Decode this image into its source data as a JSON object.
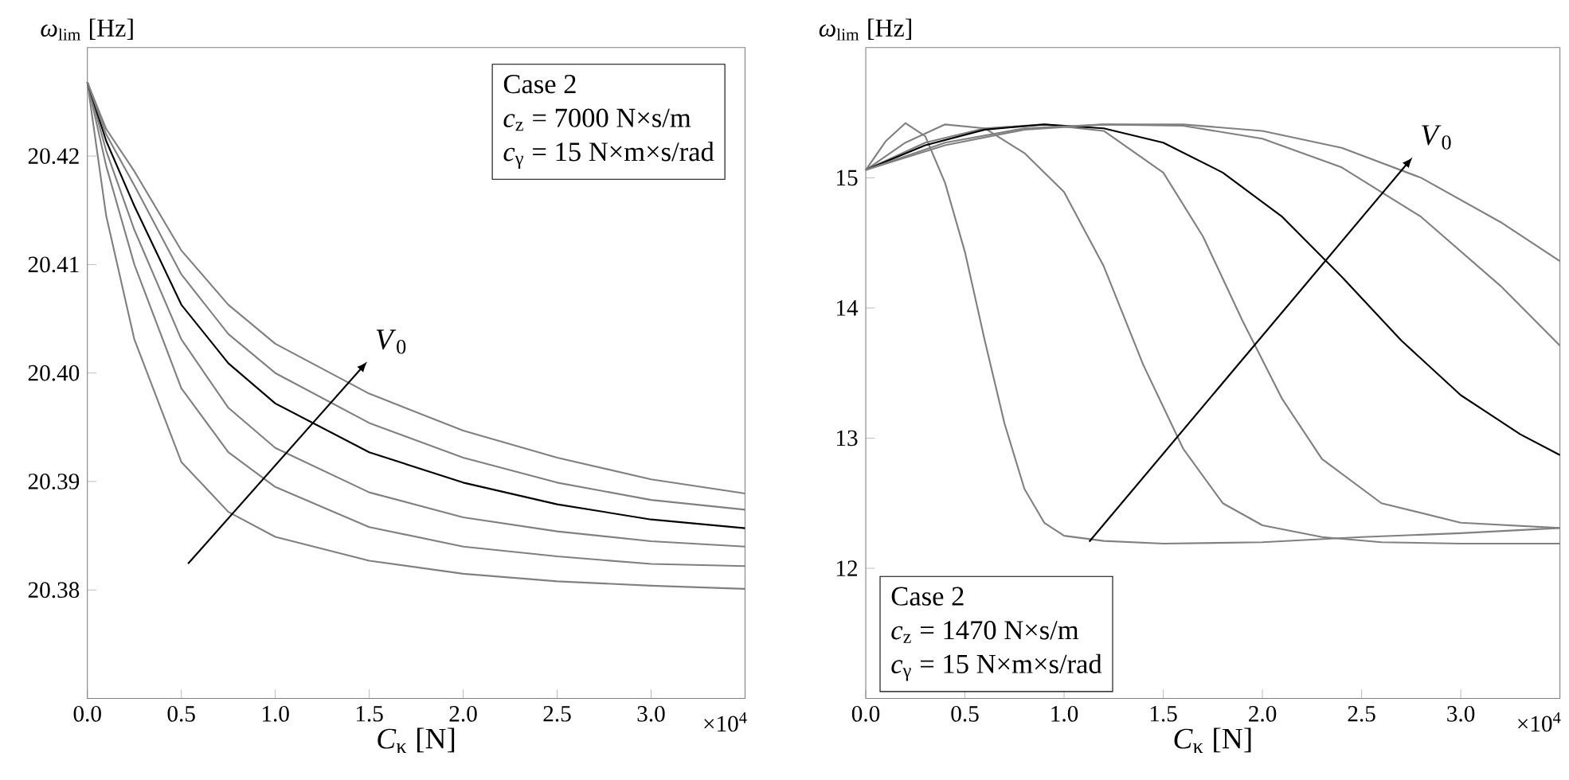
{
  "chart_data": [
    {
      "type": "line",
      "xlabel": "*C*$_{κ}$ [N]",
      "ylabel": "*ω*$_{lim}$ [Hz]",
      "x": [
        0,
        0.1,
        0.25,
        0.5,
        0.75,
        1.0,
        1.5,
        2.0,
        2.5,
        3.0,
        3.5
      ],
      "series": [
        {
          "color": "#808080",
          "values": [
            20.4268,
            20.4145,
            20.4031,
            20.3918,
            20.3872,
            20.3849,
            20.3827,
            20.3815,
            20.3808,
            20.3804,
            20.3801
          ]
        },
        {
          "color": "#808080",
          "values": [
            20.4268,
            20.4191,
            20.41,
            20.3986,
            20.3927,
            20.3895,
            20.3858,
            20.384,
            20.3831,
            20.3824,
            20.3822
          ]
        },
        {
          "color": "#808080",
          "values": [
            20.4268,
            20.4205,
            20.4132,
            20.4031,
            20.3968,
            20.3931,
            20.389,
            20.3867,
            20.3854,
            20.3845,
            20.384
          ]
        },
        {
          "color": "#000000",
          "values": [
            20.4268,
            20.4214,
            20.4154,
            20.4063,
            20.4009,
            20.3972,
            20.3927,
            20.3899,
            20.3879,
            20.3865,
            20.3857
          ]
        },
        {
          "color": "#808080",
          "values": [
            20.4268,
            20.422,
            20.4173,
            20.4091,
            20.4036,
            20.4,
            20.3954,
            20.3922,
            20.3899,
            20.3883,
            20.3874
          ]
        },
        {
          "color": "#808080",
          "values": [
            20.4268,
            20.4225,
            20.4186,
            20.4113,
            20.4063,
            20.4027,
            20.3981,
            20.3947,
            20.3922,
            20.3902,
            20.3889
          ]
        }
      ],
      "xlim": [
        0,
        3.5
      ],
      "ylim": [
        20.37,
        20.43
      ],
      "xticks": [
        {
          "value": 0,
          "label": "0.0"
        },
        {
          "value": 0.5,
          "label": "0.5"
        },
        {
          "value": 1,
          "label": "1.0"
        },
        {
          "value": 1.5,
          "label": "1.5"
        },
        {
          "value": 2,
          "label": "2.0"
        },
        {
          "value": 2.5,
          "label": "2.5"
        },
        {
          "value": 3,
          "label": "3.0"
        }
      ],
      "yticks": [
        20.38,
        20.39,
        {
          "value": 20.4,
          "label": "20.40"
        },
        20.41,
        20.42
      ],
      "annotations": [
        "Case 2",
        "*c*$_{z}$ = 7000 N×s/m",
        "*c*$_{γ}$ = 15 N×m×s/rad",
        "*V*$_{0}$",
        "×10$^{4}$"
      ],
      "marker": "none",
      "line_style": "solid"
    },
    {
      "type": "line",
      "xlabel": "*C*$_{κ}$ [N]",
      "ylabel": "*ω*$_{lim}$ [Hz]",
      "series": [
        {
          "color": "#808080",
          "x": [
            0,
            0.1,
            0.2,
            0.3,
            0.4,
            0.5,
            0.6,
            0.7,
            0.8,
            0.9,
            1.0,
            1.2,
            1.5,
            2.0,
            2.5,
            3.0,
            3.5
          ],
          "values": [
            15.06,
            15.28,
            15.42,
            15.32,
            14.96,
            14.43,
            13.75,
            13.11,
            12.61,
            12.35,
            12.25,
            12.21,
            12.19,
            12.2,
            12.24,
            12.27,
            12.31
          ]
        },
        {
          "color": "#808080",
          "x": [
            0,
            0.2,
            0.4,
            0.6,
            0.8,
            1.0,
            1.2,
            1.4,
            1.6,
            1.8,
            2.0,
            2.3,
            2.6,
            3.0,
            3.5
          ],
          "values": [
            15.06,
            15.27,
            15.41,
            15.38,
            15.19,
            14.89,
            14.32,
            13.56,
            12.92,
            12.5,
            12.33,
            12.24,
            12.2,
            12.19,
            12.19
          ]
        },
        {
          "color": "#808080",
          "x": [
            0,
            0.3,
            0.6,
            0.9,
            1.2,
            1.5,
            1.7,
            1.9,
            2.1,
            2.3,
            2.6,
            3.0,
            3.5
          ],
          "values": [
            15.06,
            15.27,
            15.38,
            15.41,
            15.36,
            15.04,
            14.55,
            13.9,
            13.3,
            12.84,
            12.5,
            12.35,
            12.31
          ]
        },
        {
          "color": "#000000",
          "x": [
            0,
            0.3,
            0.6,
            0.9,
            1.2,
            1.5,
            1.8,
            2.1,
            2.4,
            2.7,
            3.0,
            3.3,
            3.5
          ],
          "values": [
            15.06,
            15.25,
            15.37,
            15.41,
            15.38,
            15.27,
            15.04,
            14.7,
            14.24,
            13.75,
            13.33,
            13.03,
            12.87
          ]
        },
        {
          "color": "#808080",
          "x": [
            0,
            0.4,
            0.8,
            1.2,
            1.6,
            2.0,
            2.4,
            2.8,
            3.2,
            3.5
          ],
          "values": [
            15.06,
            15.27,
            15.38,
            15.41,
            15.4,
            15.3,
            15.08,
            14.7,
            14.17,
            13.71
          ]
        },
        {
          "color": "#808080",
          "x": [
            0,
            0.4,
            0.8,
            1.2,
            1.6,
            2.0,
            2.4,
            2.8,
            3.2,
            3.5
          ],
          "values": [
            15.06,
            15.25,
            15.37,
            15.41,
            15.41,
            15.36,
            15.23,
            15.0,
            14.66,
            14.36
          ]
        }
      ],
      "xlim": [
        0,
        3.5
      ],
      "ylim": [
        11,
        16
      ],
      "xticks": [
        {
          "value": 0,
          "label": "0.0"
        },
        {
          "value": 0.5,
          "label": "0.5"
        },
        {
          "value": 1,
          "label": "1.0"
        },
        {
          "value": 1.5,
          "label": "1.5"
        },
        {
          "value": 2,
          "label": "2.0"
        },
        {
          "value": 2.5,
          "label": "2.5"
        },
        {
          "value": 3,
          "label": "3.0"
        }
      ],
      "yticks": [
        12,
        13,
        14,
        15
      ],
      "annotations": [
        "Case 2",
        "*c*$_{z}$ = 1470 N×s/m",
        "*c*$_{γ}$ = 15 N×m×s/rad",
        "*V*$_{0}$",
        "×10$^{4}$"
      ],
      "marker": "none",
      "line_style": "solid"
    }
  ]
}
